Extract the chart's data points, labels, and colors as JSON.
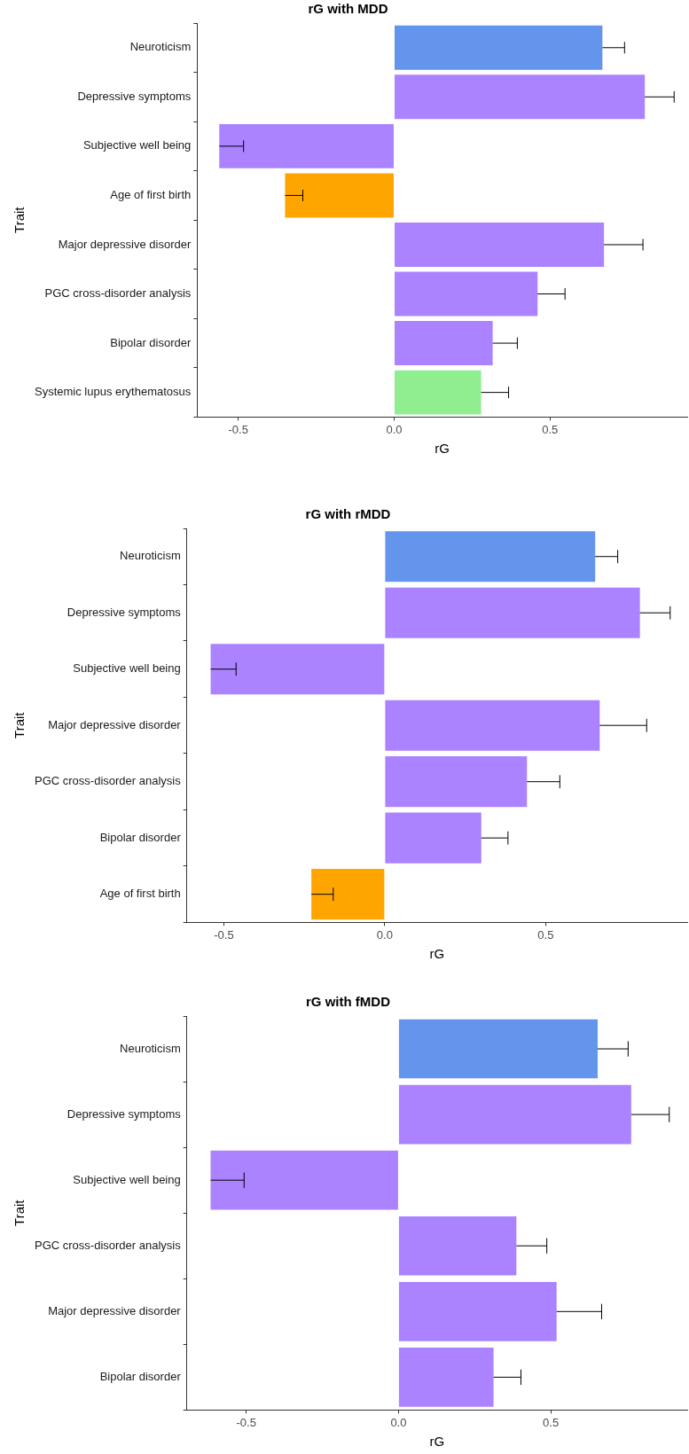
{
  "chart_data": [
    {
      "type": "bar",
      "orientation": "horizontal",
      "title": "rG with MDD",
      "xlabel": "rG",
      "ylabel": "Trait",
      "categories": [
        "Neuroticism",
        "Depressive symptoms",
        "Subjective well being",
        "Age of first birth",
        "Major depressive disorder",
        "PGC cross-disorder analysis",
        "Bipolar disorder",
        "Systemic lupus erythematosus"
      ],
      "values": [
        0.668,
        0.804,
        -0.561,
        -0.35,
        0.673,
        0.46,
        0.316,
        0.279
      ],
      "colors": [
        "#6495ed",
        "#ab82ff",
        "#ab82ff",
        "#ffa500",
        "#ab82ff",
        "#ab82ff",
        "#ab82ff",
        "#90ee90"
      ],
      "errors": [
        [
          0.668,
          0.739
        ],
        [
          0.804,
          0.898
        ],
        [
          -0.561,
          -0.483
        ],
        [
          -0.35,
          -0.293
        ],
        [
          0.673,
          0.798
        ],
        [
          0.46,
          0.548
        ],
        [
          0.316,
          0.395
        ],
        [
          0.279,
          0.367
        ]
      ],
      "xlim": [
        -0.632,
        0.94
      ],
      "xticks": [
        {
          "value": -0.5,
          "label": "-0.5"
        },
        {
          "value": 0,
          "label": "0.0"
        },
        {
          "value": 0.5,
          "label": "0.5"
        }
      ]
    },
    {
      "type": "bar",
      "orientation": "horizontal",
      "title": "rG with rMDD",
      "xlabel": "rG",
      "ylabel": "Trait",
      "categories": [
        "Neuroticism",
        "Depressive symptoms",
        "Subjective well being",
        "Major depressive disorder",
        "PGC cross-disorder analysis",
        "Bipolar disorder",
        "Age of first birth"
      ],
      "values": [
        0.654,
        0.793,
        -0.541,
        0.668,
        0.442,
        0.3,
        -0.228
      ],
      "colors": [
        "#6495ed",
        "#ab82ff",
        "#ab82ff",
        "#ab82ff",
        "#ab82ff",
        "#ab82ff",
        "#ffa500"
      ],
      "errors": [
        [
          0.654,
          0.724
        ],
        [
          0.793,
          0.887
        ],
        [
          -0.541,
          -0.462
        ],
        [
          0.668,
          0.814
        ],
        [
          0.442,
          0.544
        ],
        [
          0.3,
          0.383
        ],
        [
          -0.228,
          -0.16
        ]
      ],
      "xlim": [
        -0.615,
        0.94
      ],
      "xticks": [
        {
          "value": -0.5,
          "label": "-0.5"
        },
        {
          "value": 0,
          "label": "0.0"
        },
        {
          "value": 0.5,
          "label": "0.5"
        }
      ]
    },
    {
      "type": "bar",
      "orientation": "horizontal",
      "title": "rG with fMDD",
      "xlabel": "rG",
      "ylabel": "Trait",
      "categories": [
        "Neuroticism",
        "Depressive symptoms",
        "Subjective well being",
        "PGC cross-disorder analysis",
        "Major depressive disorder",
        "Bipolar disorder"
      ],
      "values": [
        0.654,
        0.764,
        -0.617,
        0.387,
        0.519,
        0.312
      ],
      "colors": [
        "#6495ed",
        "#ab82ff",
        "#ab82ff",
        "#ab82ff",
        "#ab82ff",
        "#ab82ff"
      ],
      "errors": [
        [
          0.654,
          0.754
        ],
        [
          0.764,
          0.889
        ],
        [
          -0.617,
          -0.507
        ],
        [
          0.387,
          0.487
        ],
        [
          0.519,
          0.667
        ],
        [
          0.312,
          0.402
        ]
      ],
      "xlim": [
        -0.695,
        0.948
      ],
      "xticks": [
        {
          "value": -0.5,
          "label": "-0.5"
        },
        {
          "value": 0,
          "label": "0.0"
        },
        {
          "value": 0.5,
          "label": "0.5"
        }
      ]
    }
  ]
}
